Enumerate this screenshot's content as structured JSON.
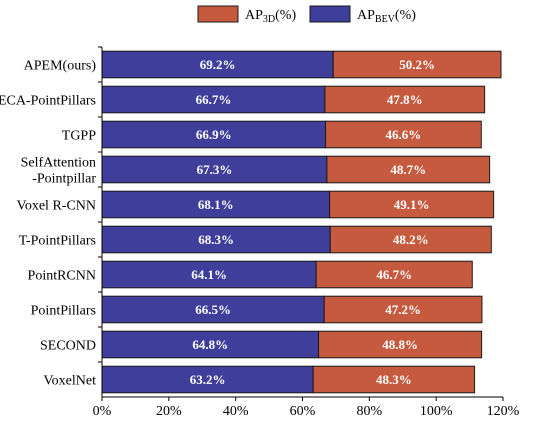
{
  "chart_data": {
    "type": "bar",
    "stacked": true,
    "orientation": "horizontal",
    "categories": [
      "APEM(ours)",
      "ECA-PointPillars",
      "TGPP",
      "SelfAttention\n-Pointpillar",
      "Voxel R-CNN",
      "T-PointPillars",
      "PointRCNN",
      "PointPillars",
      "SECOND",
      "VoxelNet"
    ],
    "series": [
      {
        "name": "AP_BEV(%)",
        "name_main": "AP",
        "name_sub": "BEV",
        "name_tail": "(%)",
        "color": "#3f3f9b",
        "values": [
          69.2,
          66.7,
          66.9,
          67.3,
          68.1,
          68.3,
          64.1,
          66.5,
          64.8,
          63.2
        ],
        "labels": [
          "69.2%",
          "66.7%",
          "66.9%",
          "67.3%",
          "68.1%",
          "68.3%",
          "64.1%",
          "66.5%",
          "64.8%",
          "63.2%"
        ]
      },
      {
        "name": "AP_3D(%)",
        "name_main": "AP",
        "name_sub": "3D",
        "name_tail": "(%)",
        "color": "#c65a3f",
        "values": [
          50.2,
          47.8,
          46.6,
          48.7,
          49.1,
          48.2,
          46.7,
          47.2,
          48.8,
          48.3
        ],
        "labels": [
          "50.2%",
          "47.8%",
          "46.6%",
          "48.7%",
          "49.1%",
          "48.2%",
          "46.7%",
          "47.2%",
          "48.8%",
          "48.3%"
        ]
      }
    ],
    "legend_order": [
      1,
      0
    ],
    "legend_position": "top",
    "xlim": [
      0,
      120
    ],
    "x_ticks": [
      0,
      20,
      40,
      60,
      80,
      100,
      120
    ],
    "x_tick_labels": [
      "0%",
      "20%",
      "40%",
      "60%",
      "80%",
      "100%",
      "120%"
    ],
    "title": "",
    "xlabel": "",
    "ylabel": "",
    "grid": false
  }
}
